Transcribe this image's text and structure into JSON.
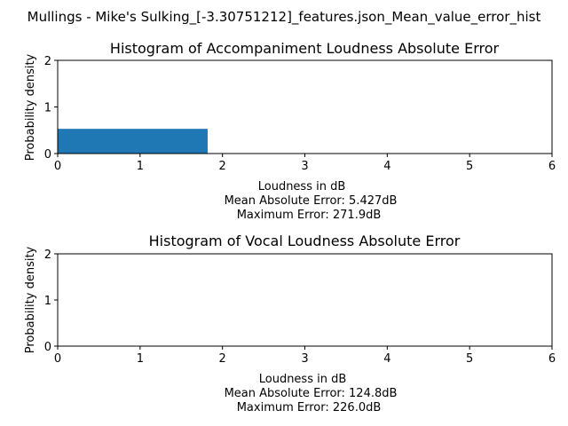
{
  "figure": {
    "suptitle": "Mullings - Mike's Sulking_[-3.30751212]_features.json_Mean_value_error_hist"
  },
  "chart_data": [
    {
      "type": "bar",
      "title": "Histogram of Accompaniment Loudness Absolute Error",
      "xlabel": "Loudness in dB",
      "xlabel_lines": [
        "Mean Absolute Error: 5.427dB",
        "Maximum Error: 271.9dB"
      ],
      "ylabel": "Probability density",
      "xlim": [
        0,
        6
      ],
      "ylim": [
        0,
        2
      ],
      "xticks": [
        0,
        1,
        2,
        3,
        4,
        5,
        6
      ],
      "yticks": [
        0,
        1,
        2
      ],
      "bars": [
        {
          "x0": 0,
          "x1": 1.82,
          "height": 0.53
        }
      ],
      "bar_color": "#1f77b4",
      "grid": false
    },
    {
      "type": "bar",
      "title": "Histogram of Vocal Loudness Absolute Error",
      "xlabel": "Loudness in dB",
      "xlabel_lines": [
        "Mean Absolute Error: 124.8dB",
        "Maximum Error: 226.0dB"
      ],
      "ylabel": "Probability density",
      "xlim": [
        0,
        6
      ],
      "ylim": [
        0,
        2
      ],
      "xticks": [
        0,
        1,
        2,
        3,
        4,
        5,
        6
      ],
      "yticks": [
        0,
        1,
        2
      ],
      "bars": [],
      "bar_color": "#1f77b4",
      "grid": false
    }
  ]
}
